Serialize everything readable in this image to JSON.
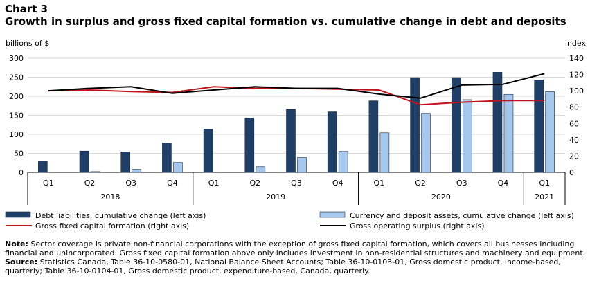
{
  "header": {
    "chart_number": "Chart 3",
    "title": "Growth in surplus and gross fixed capital formation vs. cumulative change in debt and deposits"
  },
  "chart_data": {
    "type": "bar",
    "left_axis_label": "billions of $",
    "right_axis_label": "index",
    "left_ylim": [
      0,
      300
    ],
    "left_ticks": [
      "0",
      "50",
      "100",
      "150",
      "200",
      "250",
      "300"
    ],
    "right_ylim": [
      0,
      140
    ],
    "right_ticks": [
      "0",
      "20",
      "40",
      "60",
      "80",
      "100",
      "120",
      "140"
    ],
    "grid": "horizontal",
    "legend_position": "bottom",
    "categories": [
      "Q1",
      "Q2",
      "Q3",
      "Q4",
      "Q1",
      "Q2",
      "Q3",
      "Q4",
      "Q1",
      "Q2",
      "Q3",
      "Q4",
      "Q1"
    ],
    "years": [
      {
        "label": "2018",
        "start": 0,
        "count": 4
      },
      {
        "label": "2019",
        "start": 4,
        "count": 4
      },
      {
        "label": "2020",
        "start": 8,
        "count": 4
      },
      {
        "label": "2021",
        "start": 12,
        "count": 1
      }
    ],
    "series": [
      {
        "name": "Debt liabilities, cumulative change (left axis)",
        "kind": "bar",
        "axis": "left",
        "color": "#1f3f66",
        "values": [
          30,
          56,
          54,
          77,
          114,
          143,
          165,
          159,
          188,
          249,
          249,
          263,
          243
        ]
      },
      {
        "name": "Currency and deposit assets, cumulative change (left axis)",
        "kind": "bar",
        "axis": "left",
        "color": "#a6c8ec",
        "values": [
          0,
          2,
          8,
          26,
          0,
          15,
          39,
          55,
          104,
          155,
          191,
          205,
          212
        ]
      },
      {
        "name": "Gross fixed capital formation (right axis)",
        "kind": "line",
        "axis": "right",
        "color": "#c0141b",
        "values": [
          100,
          101,
          99,
          98,
          105,
          103,
          103,
          102,
          101,
          83,
          86,
          88,
          88
        ]
      },
      {
        "name": "Gross operating surplus (right axis)",
        "kind": "line",
        "axis": "right",
        "color": "#000000",
        "values": [
          100,
          103,
          105,
          97,
          101,
          105,
          103,
          103,
          96,
          91,
          107,
          108,
          121
        ]
      }
    ]
  },
  "footer": {
    "note_label": "Note:",
    "note_text": "Sector coverage is private non-financial corporations with the exception of gross fixed capital formation, which covers all businesses including financial and unincorporated. Gross fixed capital formation above only includes investment in non-residential structures and machinery and equipment.",
    "source_label": "Source:",
    "source_text": "Statistics Canada, Table 36-10-0580-01, National Balance Sheet Accounts; Table 36-10-0103-01, Gross domestic product, income-based, quarterly; Table 36-10-0104-01, Gross domestic product, expenditure-based, Canada, quarterly."
  }
}
